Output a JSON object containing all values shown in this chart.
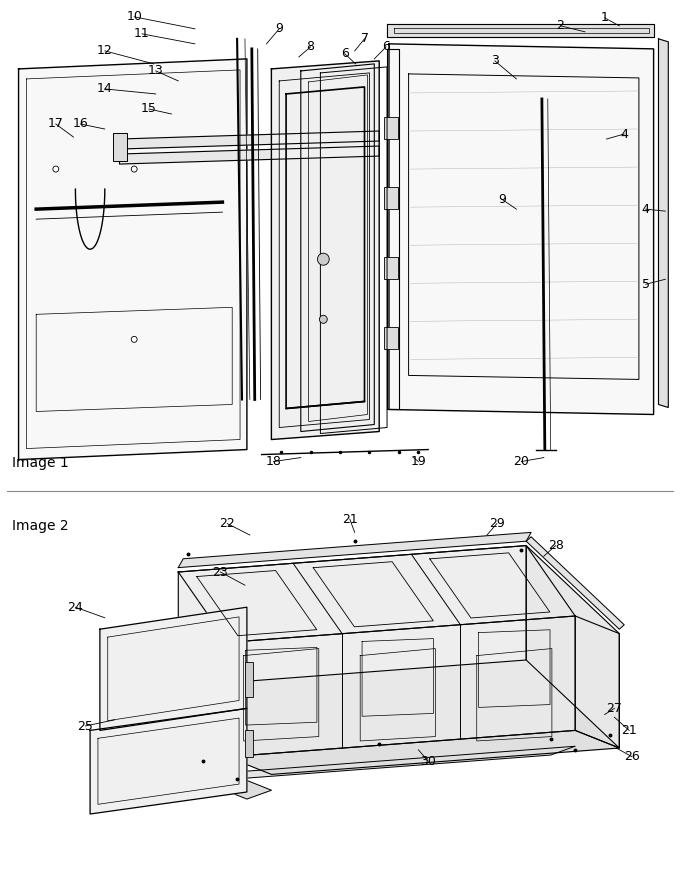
{
  "bg_color": "#ffffff",
  "line_color": "#000000",
  "gray_color": "#555555",
  "light_gray": "#aaaaaa",
  "image1_label": "Image 1",
  "image2_label": "Image 2",
  "divider_color": "#888888",
  "font_size": 9,
  "font_size_section": 10
}
